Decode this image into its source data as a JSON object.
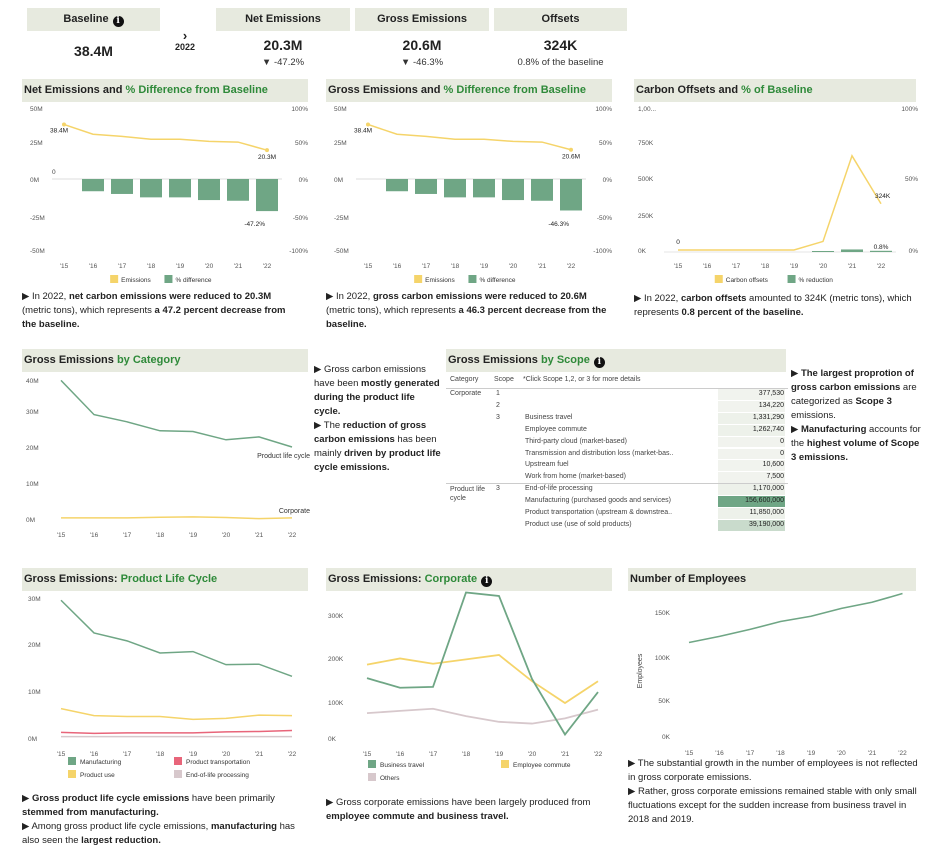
{
  "kpis": {
    "baseline": {
      "label": "Baseline",
      "value": "38.4M"
    },
    "year_selector": {
      "year": "2022"
    },
    "net": {
      "label": "Net Emissions",
      "value": "20.3M",
      "sub": "▼ -47.2%"
    },
    "gross": {
      "label": "Gross Emissions",
      "value": "20.6M",
      "sub": "▼ -46.3%"
    },
    "offsets": {
      "label": "Offsets",
      "value": "324K",
      "sub": "0.8% of the baseline"
    }
  },
  "colors": {
    "emissions": "#f5d46a",
    "difference": "#6fa685",
    "accent": "#2f8a3a",
    "header": "#e7eadf",
    "pink": "#e8657a",
    "grey": "#d7c8cc"
  },
  "panels": {
    "net": {
      "title_a": "Net Emissions and ",
      "title_b": "% Difference from Baseline",
      "legend_a": "Emissions",
      "legend_b": "% difference",
      "note_a": "In 2022, ",
      "note_b": "net carbon emissions were reduced to 20.3M",
      "note_c": " (metric tons), which represents ",
      "note_d": "a 47.2 percent decrease from the baseline."
    },
    "gross": {
      "title_a": "Gross Emissions and ",
      "title_b": "% Difference from Baseline",
      "legend_a": "Emissions",
      "legend_b": "% difference",
      "note_a": "In 2022, ",
      "note_b": "gross carbon emissions were reduced to 20.6M",
      "note_c": " (metric tons), which represents ",
      "note_d": "a 46.3 percent decrease from the baseline."
    },
    "offsets": {
      "title_a": "Carbon Offsets and ",
      "title_b": "% of Baseline",
      "legend_a": "Carbon offsets",
      "legend_b": "% reduction",
      "note_a": "In 2022, ",
      "note_b": "carbon offsets",
      "note_c": " amounted to 324K (metric tons), which represents ",
      "note_d": "0.8 percent of the baseline."
    },
    "category": {
      "title_a": "Gross Emissions ",
      "title_b": "by Category",
      "note_1": "Gross carbon emissions have been ",
      "note_2": "mostly generated during the product life cycle.",
      "note_3": "The ",
      "note_4": "reduction of gross carbon emissions",
      "note_5": " has been mainly ",
      "note_6": "driven by product life cycle emissions."
    },
    "scope": {
      "title_a": "Gross Emissions ",
      "title_b": "by Scope",
      "hint": "*Click Scope 1,2, or 3 for more details",
      "note_1": "The largest proprotion of gross carbon emissions",
      "note_2": " are categorized as ",
      "note_3": "Scope 3",
      "note_4": " emissions.",
      "note_5": "Manufacturing",
      "note_6": " accounts for the ",
      "note_7": "highest volume of Scope 3 emissions."
    },
    "plc": {
      "title_a": "Gross Emissions: ",
      "title_b": "Product Life Cycle",
      "note_1": "Gross product life cycle emissions",
      "note_2": " have been primarily ",
      "note_3": "stemmed from manufacturing.",
      "note_4": "Among gross product life cycle emissions, ",
      "note_5": "manufacturing",
      "note_6": " has also seen the ",
      "note_7": "largest reduction."
    },
    "corp": {
      "title_a": "Gross Emissions: ",
      "title_b": "Corporate",
      "note_1": "Gross corporate emissions have been largely produced from ",
      "note_2": "employee commute and business travel."
    },
    "employees": {
      "title": "Number of Employees",
      "note_1": "The substantial growth in the number of employees is not reflected in gross corporate emissions.",
      "note_2": "Rather, gross corporate emissions remained stable with only small fluctuations except for the sudden increase from business travel in 2018 and 2019."
    }
  },
  "scope_table": {
    "headers": [
      "Category",
      "Scope"
    ],
    "rows": [
      {
        "category": "Corporate",
        "scope": "1",
        "item": "",
        "value": "377,530"
      },
      {
        "category": "",
        "scope": "2",
        "item": "",
        "value": "134,220"
      },
      {
        "category": "",
        "scope": "3",
        "item": "Business travel",
        "value": "1,331,290"
      },
      {
        "category": "",
        "scope": "",
        "item": "Employee commute",
        "value": "1,262,740"
      },
      {
        "category": "",
        "scope": "",
        "item": "Third-party cloud (market-based)",
        "value": "0"
      },
      {
        "category": "",
        "scope": "",
        "item": "Transmission and distribution loss (market-bas..",
        "value": "0"
      },
      {
        "category": "",
        "scope": "",
        "item": "Upstream fuel",
        "value": "10,600"
      },
      {
        "category": "",
        "scope": "",
        "item": "Work from home (market-based)",
        "value": "7,500"
      },
      {
        "category": "Product life cycle",
        "scope": "3",
        "item": "End-of-life processing",
        "value": "1,170,000"
      },
      {
        "category": "",
        "scope": "",
        "item": "Manufacturing (purchased goods and services)",
        "value": "156,600,000"
      },
      {
        "category": "",
        "scope": "",
        "item": "Product transportation (upstream & downstrea..",
        "value": "11,850,000"
      },
      {
        "category": "",
        "scope": "",
        "item": "Product use (use of sold products)",
        "value": "39,190,000"
      }
    ]
  },
  "chart_data": [
    {
      "id": "net",
      "type": "line+bar",
      "title": "Net Emissions and % Difference from Baseline",
      "categories": [
        "'15",
        "'16",
        "'17",
        "'18",
        "'19",
        "'20",
        "'21",
        "'22"
      ],
      "series": [
        {
          "name": "Emissions",
          "axis": "left",
          "values": [
            38.4,
            31.5,
            30.0,
            28.0,
            28.0,
            26.5,
            26.0,
            20.3
          ]
        },
        {
          "name": "% difference",
          "axis": "left-bar",
          "values": [
            0,
            -18,
            -22,
            -27,
            -27,
            -31,
            -32,
            -47.2
          ]
        }
      ],
      "left_ticks": [
        "50M",
        "25M",
        "0M",
        "-25M",
        "-50M"
      ],
      "right_ticks": [
        "100%",
        "50%",
        "0%",
        "-50%",
        "-100%"
      ],
      "labels": {
        "start": "38.4M",
        "end": "20.3M",
        "zero": "0",
        "endpct": "-47.2%"
      }
    },
    {
      "id": "gross",
      "type": "line+bar",
      "title": "Gross Emissions and % Difference from Baseline",
      "categories": [
        "'15",
        "'16",
        "'17",
        "'18",
        "'19",
        "'20",
        "'21",
        "'22"
      ],
      "series": [
        {
          "name": "Emissions",
          "axis": "left",
          "values": [
            38.4,
            31.5,
            30.0,
            28.0,
            28.0,
            26.5,
            26.0,
            20.6
          ]
        },
        {
          "name": "% difference",
          "axis": "left-bar",
          "values": [
            0,
            -18,
            -22,
            -27,
            -27,
            -31,
            -32,
            -46.3
          ]
        }
      ],
      "left_ticks": [
        "50M",
        "25M",
        "0M",
        "-25M",
        "-50M"
      ],
      "right_ticks": [
        "100%",
        "50%",
        "0%",
        "-50%",
        "-100%"
      ],
      "labels": {
        "start": "38.4M",
        "end": "20.6M",
        "endpct": "-46.3%"
      }
    },
    {
      "id": "offsets",
      "type": "line+bar",
      "title": "Carbon Offsets and % of Baseline",
      "categories": [
        "'15",
        "'16",
        "'17",
        "'18",
        "'19",
        "'20",
        "'21",
        "'22"
      ],
      "series": [
        {
          "name": "Carbon offsets",
          "values": [
            0,
            0,
            0,
            0,
            0,
            60,
            660,
            324
          ]
        },
        {
          "name": "% reduction",
          "values": [
            0,
            0,
            0,
            0,
            0,
            0.1,
            1.7,
            0.8
          ]
        }
      ],
      "left_ticks": [
        "1,00...",
        "750K",
        "500K",
        "250K",
        "0K"
      ],
      "right_ticks": [
        "100%",
        "50%",
        "0%"
      ],
      "labels": {
        "zero": "0",
        "end": "324K",
        "endpct": "0.8%"
      }
    },
    {
      "id": "category",
      "type": "line",
      "title": "Gross Emissions by Category",
      "categories": [
        "'15",
        "'16",
        "'17",
        "'18",
        "'19",
        "'20",
        "'21",
        "'22"
      ],
      "series": [
        {
          "name": "Product life cycle",
          "values": [
            38.5,
            29,
            27,
            24.5,
            24.3,
            22,
            22.8,
            20
          ]
        },
        {
          "name": "Corporate",
          "values": [
            0.3,
            0.3,
            0.3,
            0.5,
            0.6,
            0.4,
            0.1,
            0.3
          ]
        }
      ],
      "y_ticks": [
        "40M",
        "30M",
        "20M",
        "10M",
        "0M"
      ],
      "ylim": [
        0,
        40
      ]
    },
    {
      "id": "plc",
      "type": "line",
      "title": "Gross Emissions: Product Life Cycle",
      "categories": [
        "'15",
        "'16",
        "'17",
        "'18",
        "'19",
        "'20",
        "'21",
        "'22"
      ],
      "series": [
        {
          "name": "Manufacturing",
          "values": [
            29.5,
            22.5,
            20.8,
            18.2,
            18.5,
            15.7,
            15.8,
            13.2
          ]
        },
        {
          "name": "Product transportation",
          "values": [
            1.2,
            1.0,
            1.1,
            1.1,
            1.1,
            1.3,
            1.4,
            1.6
          ]
        },
        {
          "name": "Product use",
          "values": [
            6.3,
            4.8,
            4.6,
            4.6,
            4.0,
            4.2,
            4.9,
            4.8
          ]
        },
        {
          "name": "End-of-life processing",
          "values": [
            0.3,
            0.3,
            0.3,
            0.3,
            0.3,
            0.3,
            0.3,
            0.3
          ]
        }
      ],
      "y_ticks": [
        "30M",
        "20M",
        "10M",
        "0M"
      ],
      "ylim": [
        0,
        30
      ]
    },
    {
      "id": "corp",
      "type": "line",
      "title": "Gross Emissions: Corporate",
      "categories": [
        "'15",
        "'16",
        "'17",
        "'18",
        "'19",
        "'20",
        "'21",
        "'22"
      ],
      "series": [
        {
          "name": "Business travel",
          "values": [
            137,
            115,
            117,
            333,
            325,
            135,
            8,
            105
          ]
        },
        {
          "name": "Employee commute",
          "values": [
            168,
            182,
            170,
            180,
            190,
            130,
            80,
            130
          ]
        },
        {
          "name": "Others",
          "values": [
            57,
            62,
            67,
            50,
            37,
            33,
            45,
            65
          ]
        }
      ],
      "y_ticks": [
        "300K",
        "200K",
        "100K",
        "0K"
      ],
      "ylim": [
        0,
        350
      ]
    },
    {
      "id": "employees",
      "type": "line",
      "title": "Number of Employees",
      "categories": [
        "'15",
        "'16",
        "'17",
        "'18",
        "'19",
        "'20",
        "'21",
        "'22"
      ],
      "series": [
        {
          "name": "Employees",
          "values": [
            107,
            114,
            122,
            131,
            137,
            146,
            153,
            163
          ]
        }
      ],
      "y_ticks": [
        "150K",
        "100K",
        "50K",
        "0K"
      ],
      "ylabel": "Employees",
      "ylim": [
        0,
        170
      ]
    }
  ]
}
